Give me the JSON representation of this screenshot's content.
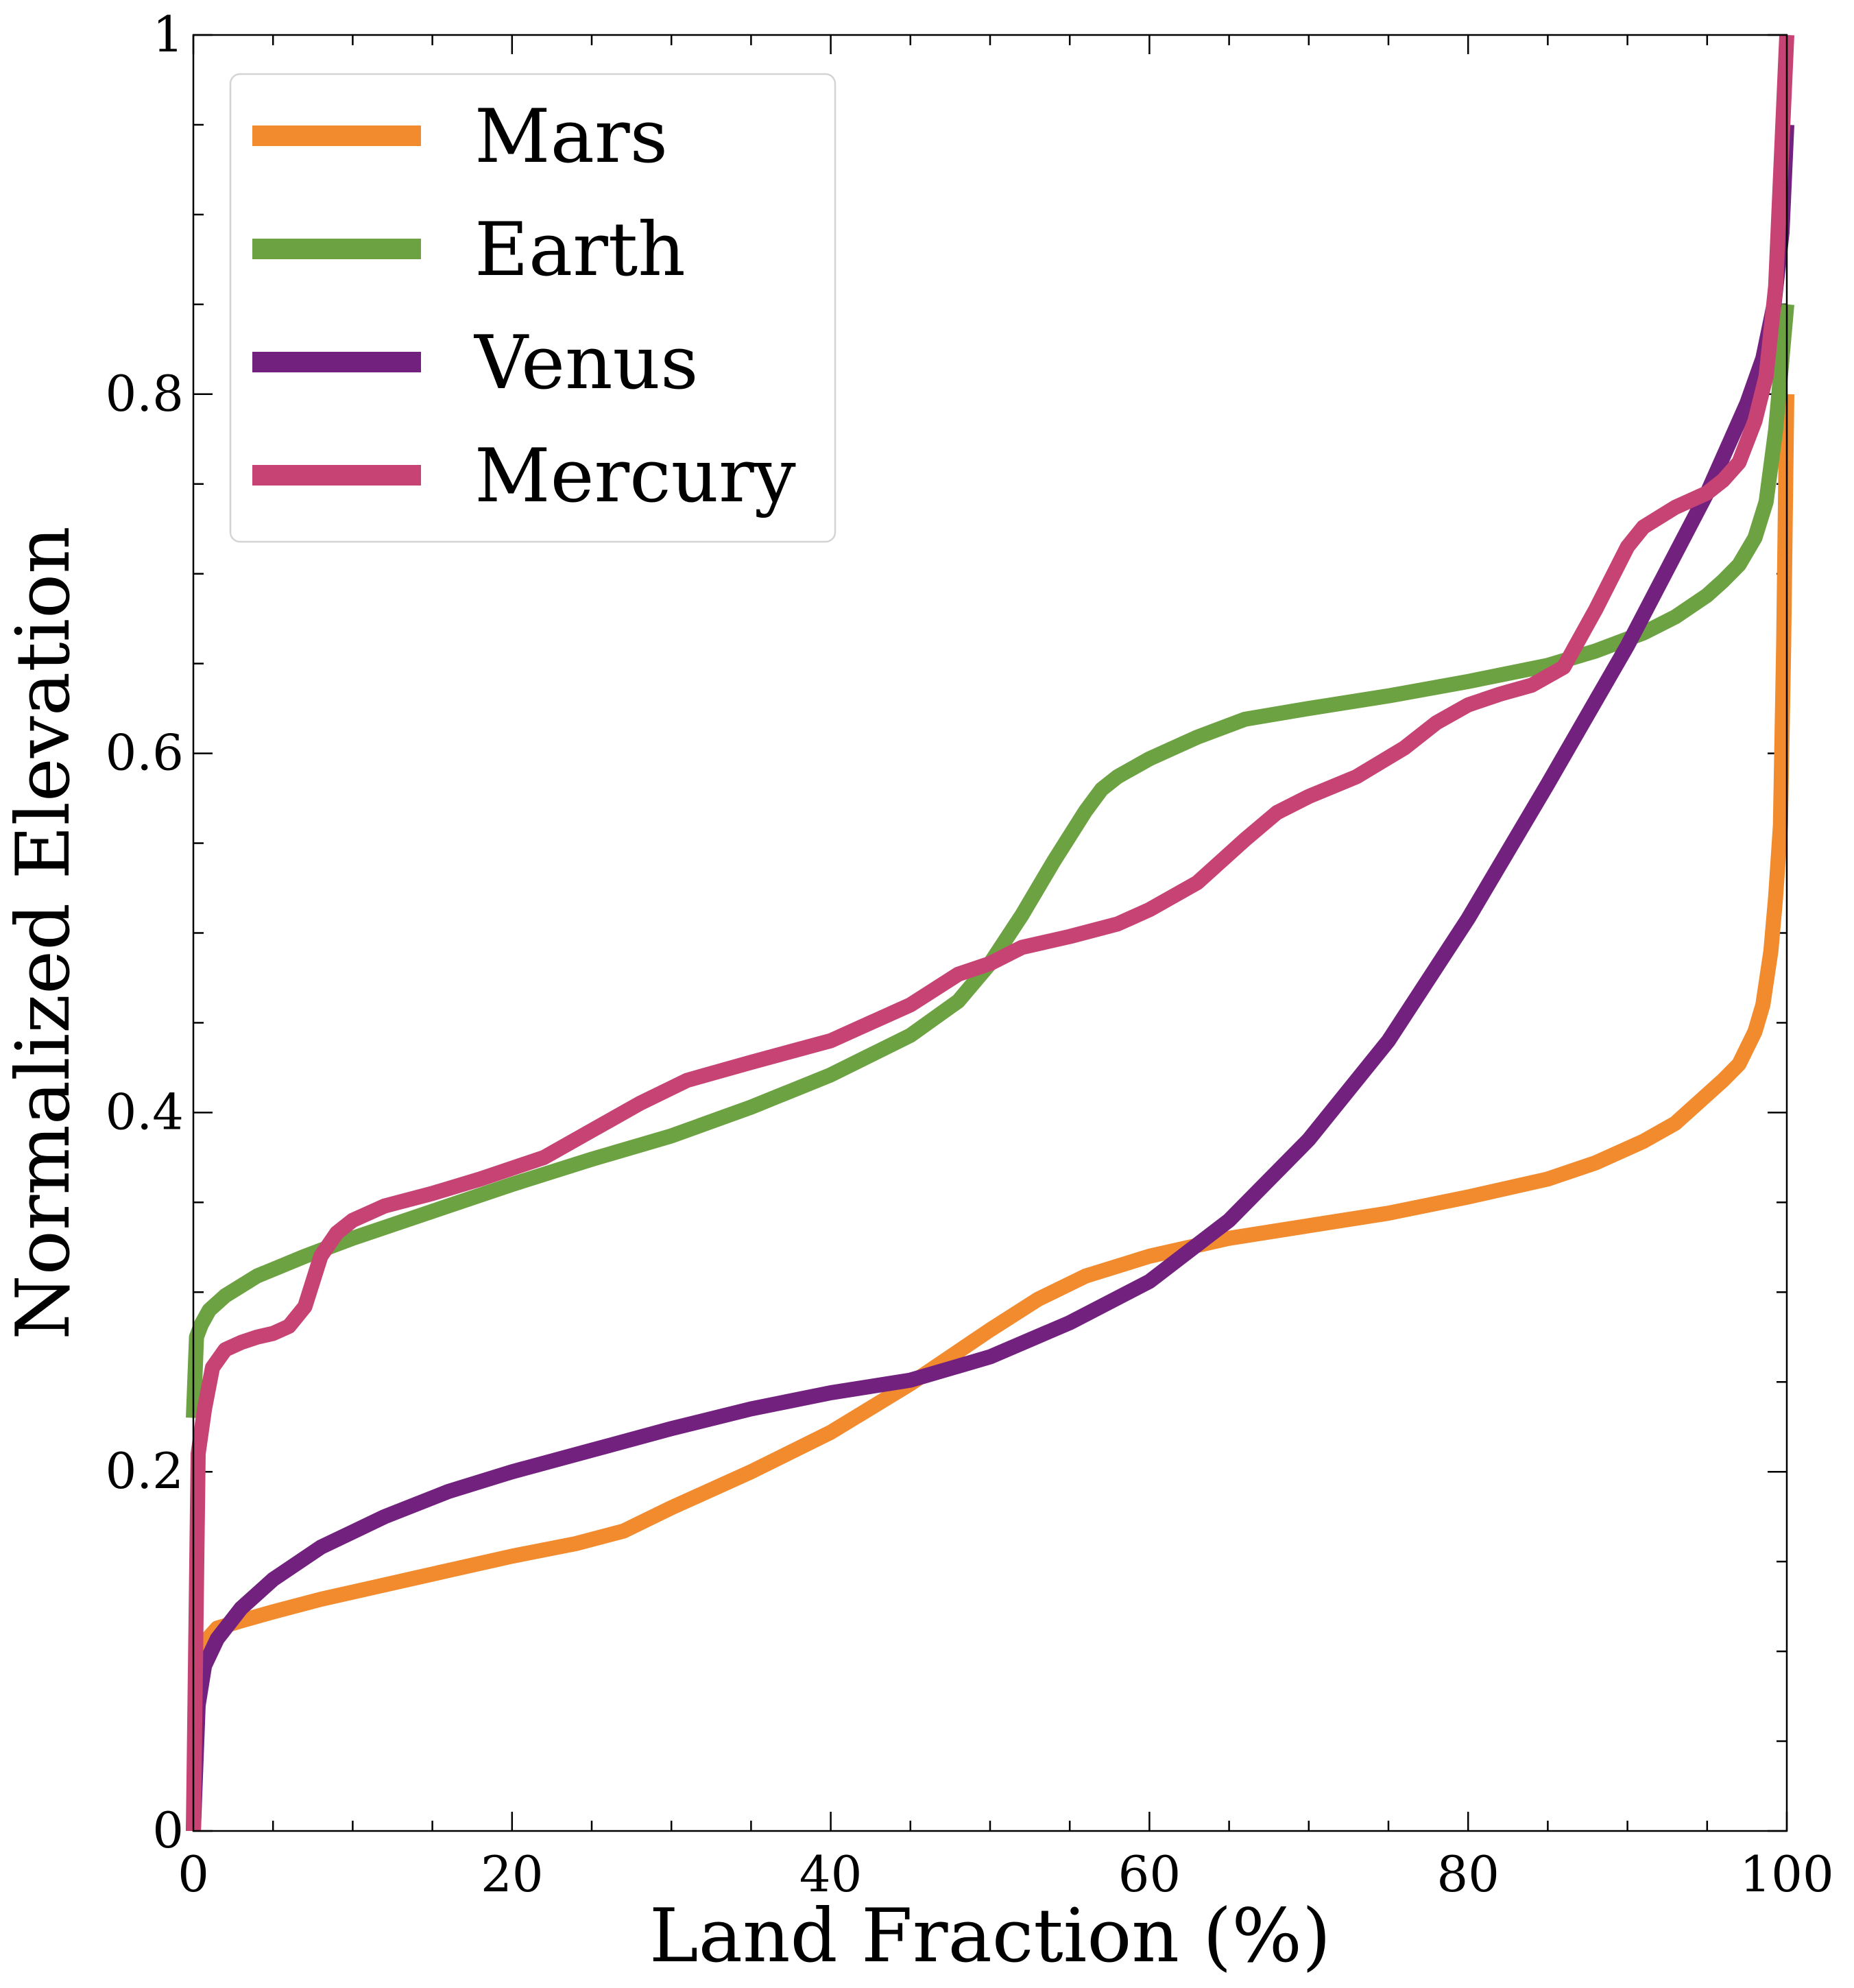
{
  "chart_data": {
    "type": "line",
    "title": "",
    "xlabel": "Land Fraction (%)",
    "ylabel": "Normalized Elevation",
    "xlim": [
      0,
      100
    ],
    "ylim": [
      0,
      1
    ],
    "xticks": [
      0,
      20,
      40,
      60,
      80,
      100
    ],
    "xtick_labels": [
      "0",
      "20",
      "40",
      "60",
      "80",
      "100"
    ],
    "yticks": [
      0,
      0.2,
      0.4,
      0.6,
      0.8,
      1
    ],
    "ytick_labels": [
      "0",
      "0.2",
      "0.4",
      "0.6",
      "0.8",
      "1"
    ],
    "grid": false,
    "legend_position": "top-left",
    "series": [
      {
        "name": "Mars",
        "color": "#f28a2e",
        "x": [
          0,
          0.3,
          0.7,
          1.5,
          3,
          5,
          8,
          12,
          16,
          20,
          24,
          27,
          30,
          35,
          40,
          45,
          50,
          53,
          56,
          60,
          65,
          70,
          75,
          80,
          85,
          88,
          91,
          93,
          95,
          96,
          97,
          98,
          98.5,
          99,
          99.3,
          99.6,
          99.8,
          100
        ],
        "y": [
          0,
          0.08,
          0.105,
          0.113,
          0.117,
          0.122,
          0.129,
          0.137,
          0.145,
          0.153,
          0.16,
          0.167,
          0.18,
          0.2,
          0.222,
          0.249,
          0.279,
          0.296,
          0.309,
          0.32,
          0.33,
          0.337,
          0.344,
          0.353,
          0.363,
          0.372,
          0.384,
          0.394,
          0.41,
          0.418,
          0.427,
          0.445,
          0.46,
          0.49,
          0.52,
          0.56,
          0.66,
          0.8
        ]
      },
      {
        "name": "Earth",
        "color": "#6da242",
        "x": [
          0,
          0.2,
          0.5,
          1,
          2,
          4,
          7,
          10,
          15,
          20,
          25,
          30,
          35,
          40,
          45,
          48,
          50,
          52,
          54,
          56,
          57,
          58,
          60,
          63,
          66,
          70,
          75,
          80,
          85,
          88,
          91,
          93,
          95,
          96,
          97,
          98,
          98.7,
          99.3,
          100
        ],
        "y": [
          0.23,
          0.275,
          0.282,
          0.29,
          0.298,
          0.309,
          0.32,
          0.33,
          0.345,
          0.36,
          0.374,
          0.387,
          0.403,
          0.421,
          0.443,
          0.462,
          0.483,
          0.51,
          0.54,
          0.568,
          0.58,
          0.587,
          0.597,
          0.609,
          0.619,
          0.625,
          0.632,
          0.64,
          0.649,
          0.657,
          0.667,
          0.676,
          0.688,
          0.696,
          0.705,
          0.72,
          0.74,
          0.78,
          0.85
        ]
      },
      {
        "name": "Venus",
        "color": "#73217f",
        "x": [
          0,
          0.3,
          0.7,
          1.5,
          3,
          5,
          8,
          12,
          16,
          20,
          25,
          30,
          35,
          40,
          45,
          50,
          55,
          60,
          65,
          70,
          75,
          80,
          85,
          90,
          93,
          95,
          96.5,
          97.5,
          98.5,
          99.2,
          99.7,
          100
        ],
        "y": [
          0,
          0.07,
          0.092,
          0.107,
          0.124,
          0.14,
          0.158,
          0.175,
          0.189,
          0.2,
          0.212,
          0.224,
          0.235,
          0.244,
          0.251,
          0.264,
          0.283,
          0.306,
          0.34,
          0.385,
          0.44,
          0.508,
          0.583,
          0.66,
          0.711,
          0.745,
          0.775,
          0.795,
          0.82,
          0.85,
          0.89,
          0.95
        ]
      },
      {
        "name": "Mercury",
        "color": "#c74373",
        "x": [
          0,
          0.3,
          0.7,
          1.2,
          2,
          3,
          4,
          5,
          6,
          7,
          8,
          9,
          10,
          12,
          15,
          18,
          22,
          25,
          28,
          31,
          35,
          40,
          45,
          48,
          50,
          52,
          55,
          58,
          60,
          63,
          66,
          68,
          70,
          73,
          76,
          78,
          80,
          82,
          84,
          86,
          88,
          90,
          91,
          93,
          95,
          96,
          97,
          98,
          98.7,
          99.3,
          100
        ],
        "y": [
          0,
          0.21,
          0.235,
          0.258,
          0.268,
          0.272,
          0.275,
          0.277,
          0.281,
          0.292,
          0.32,
          0.333,
          0.34,
          0.348,
          0.355,
          0.363,
          0.375,
          0.39,
          0.405,
          0.418,
          0.428,
          0.44,
          0.46,
          0.477,
          0.483,
          0.492,
          0.498,
          0.505,
          0.513,
          0.528,
          0.552,
          0.567,
          0.576,
          0.587,
          0.603,
          0.617,
          0.627,
          0.633,
          0.638,
          0.648,
          0.68,
          0.715,
          0.726,
          0.737,
          0.745,
          0.752,
          0.762,
          0.785,
          0.81,
          0.86,
          1.0
        ]
      }
    ]
  }
}
